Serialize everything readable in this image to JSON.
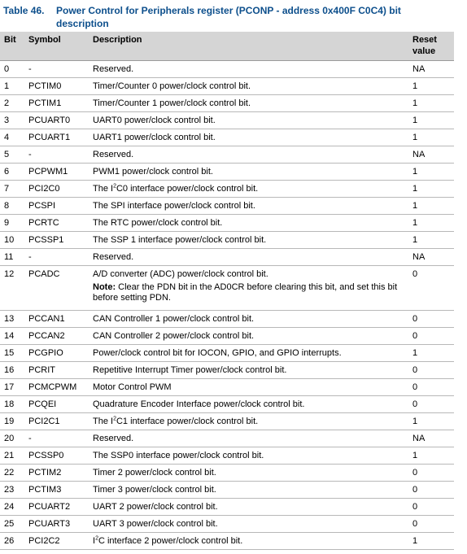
{
  "caption": {
    "number": "Table 46.",
    "title": "Power Control for Peripherals register (PCONP - address 0x400F C0C4) bit description"
  },
  "table": {
    "headers": {
      "bit": "Bit",
      "symbol": "Symbol",
      "description": "Description",
      "reset": "Reset value"
    },
    "rows": [
      {
        "bit": "0",
        "symbol": "-",
        "description": "Reserved.",
        "reset": "NA"
      },
      {
        "bit": "1",
        "symbol": "PCTIM0",
        "description": "Timer/Counter 0 power/clock control bit.",
        "reset": "1"
      },
      {
        "bit": "2",
        "symbol": "PCTIM1",
        "description": "Timer/Counter 1 power/clock control bit.",
        "reset": "1"
      },
      {
        "bit": "3",
        "symbol": "PCUART0",
        "description": "UART0 power/clock control bit.",
        "reset": "1"
      },
      {
        "bit": "4",
        "symbol": "PCUART1",
        "description": "UART1 power/clock control bit.",
        "reset": "1"
      },
      {
        "bit": "5",
        "symbol": "-",
        "description": "Reserved.",
        "reset": "NA"
      },
      {
        "bit": "6",
        "symbol": "PCPWM1",
        "description": "PWM1 power/clock control bit.",
        "reset": "1"
      },
      {
        "bit": "7",
        "symbol": "PCI2C0",
        "desc_pre": "The I",
        "desc_sup": "2",
        "desc_post": "C0 interface power/clock control bit.",
        "reset": "1"
      },
      {
        "bit": "8",
        "symbol": "PCSPI",
        "description": "The SPI interface power/clock control bit.",
        "reset": "1"
      },
      {
        "bit": "9",
        "symbol": "PCRTC",
        "description": "The RTC power/clock control bit.",
        "reset": "1"
      },
      {
        "bit": "10",
        "symbol": "PCSSP1",
        "description": "The SSP 1 interface power/clock control bit.",
        "reset": "1"
      },
      {
        "bit": "11",
        "symbol": "-",
        "description": "Reserved.",
        "reset": "NA"
      },
      {
        "bit": "12",
        "symbol": "PCADC",
        "description": "A/D converter (ADC) power/clock control bit.",
        "note_label": "Note:",
        "note_text": " Clear the PDN bit in the AD0CR before clearing this bit, and set this bit before setting PDN.",
        "reset": "0"
      },
      {
        "bit": "13",
        "symbol": "PCCAN1",
        "description": "CAN Controller 1 power/clock control bit.",
        "reset": "0"
      },
      {
        "bit": "14",
        "symbol": "PCCAN2",
        "description": "CAN Controller 2 power/clock control bit.",
        "reset": "0"
      },
      {
        "bit": "15",
        "symbol": "PCGPIO",
        "description": "Power/clock control bit for IOCON, GPIO, and GPIO interrupts.",
        "reset": "1"
      },
      {
        "bit": "16",
        "symbol": "PCRIT",
        "description": "Repetitive Interrupt Timer power/clock control bit.",
        "reset": "0"
      },
      {
        "bit": "17",
        "symbol": "PCMCPWM",
        "description": "Motor Control PWM",
        "reset": "0"
      },
      {
        "bit": "18",
        "symbol": "PCQEI",
        "description": "Quadrature Encoder Interface power/clock control bit.",
        "reset": "0"
      },
      {
        "bit": "19",
        "symbol": "PCI2C1",
        "desc_pre": "The I",
        "desc_sup": "2",
        "desc_post": "C1 interface power/clock control bit.",
        "reset": "1"
      },
      {
        "bit": "20",
        "symbol": "-",
        "description": "Reserved.",
        "reset": "NA"
      },
      {
        "bit": "21",
        "symbol": "PCSSP0",
        "description": "The SSP0 interface power/clock control bit.",
        "reset": "1"
      },
      {
        "bit": "22",
        "symbol": "PCTIM2",
        "description": "Timer 2 power/clock control bit.",
        "reset": "0"
      },
      {
        "bit": "23",
        "symbol": "PCTIM3",
        "description": "Timer 3 power/clock control bit.",
        "reset": "0"
      },
      {
        "bit": "24",
        "symbol": "PCUART2",
        "description": "UART 2 power/clock control bit.",
        "reset": "0"
      },
      {
        "bit": "25",
        "symbol": "PCUART3",
        "description": "UART 3 power/clock control bit.",
        "reset": "0"
      },
      {
        "bit": "26",
        "symbol": "PCI2C2",
        "desc_pre": "I",
        "desc_sup": "2",
        "desc_post": "C interface 2 power/clock control bit.",
        "reset": "1"
      }
    ]
  },
  "colors": {
    "caption": "#0d4f8c",
    "header_bg": "#d5d5d5"
  }
}
